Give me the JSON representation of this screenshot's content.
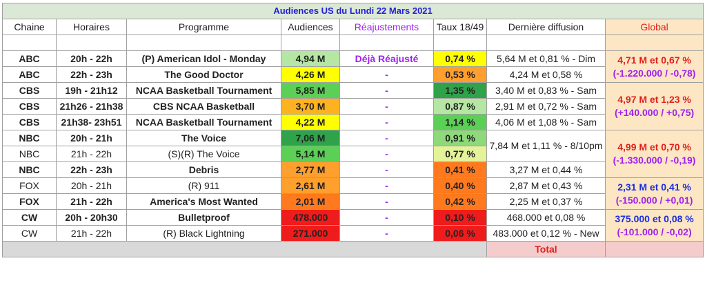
{
  "title": "Audiences US du Lundi 22 Mars 2021",
  "headers": {
    "chaine": "Chaine",
    "horaires": "Horaires",
    "programme": "Programme",
    "audiences": "Audiences",
    "reajustements": "Réajustements",
    "taux": "Taux 18/49",
    "derniere": "Dernière diffusion",
    "global": "Global"
  },
  "rows": [
    {
      "chaine": "ABC",
      "horaires": "20h - 22h",
      "programme": "(P) American Idol - Monday",
      "audience": "4,94 M",
      "aud_color": "#b6e6a4",
      "reaj": "Déjà Réajusté",
      "taux": "0,74 %",
      "taux_color": "#ffff00",
      "derniere": "5,64 M et 0,81 % - Dim"
    },
    {
      "chaine": "ABC",
      "horaires": "22h - 23h",
      "programme": "The Good Doctor",
      "audience": "4,26 M",
      "aud_color": "#ffff00",
      "reaj": "-",
      "taux": "0,53 %",
      "taux_color": "#ff9f2d",
      "derniere": "4,24 M et 0,58 %"
    },
    {
      "chaine": "CBS",
      "horaires": "19h - 21h12",
      "programme": "NCAA Basketball Tournament",
      "audience": "5,85 M",
      "aud_color": "#5ccf56",
      "reaj": "-",
      "taux": "1,35 %",
      "taux_color": "#2fa24a",
      "derniere": "3,40 M et 0,83 % - Sam"
    },
    {
      "chaine": "CBS",
      "horaires": "21h26 - 21h38",
      "programme": "CBS NCAA Basketball",
      "audience": "3,70 M",
      "aud_color": "#ffb21f",
      "reaj": "-",
      "taux": "0,87 %",
      "taux_color": "#b6e6a4",
      "derniere": "2,91 M et 0,72 % - Sam"
    },
    {
      "chaine": "CBS",
      "horaires": "21h38- 23h51",
      "programme": "NCAA Basketball Tournament",
      "audience": "4,22 M",
      "aud_color": "#ffff00",
      "reaj": "-",
      "taux": "1,14 %",
      "taux_color": "#5ccf56",
      "derniere": "4,06 M et 1,08 % - Sam"
    },
    {
      "chaine": "NBC",
      "horaires": "20h - 21h",
      "programme": "The Voice",
      "audience": "7,06 M",
      "aud_color": "#2fa24a",
      "reaj": "-",
      "taux": "0,91 %",
      "taux_color": "#8ed97a",
      "derniere": "7,84 M et 1,11 % - 8/10pm"
    },
    {
      "chaine": "NBC",
      "horaires": "21h - 22h",
      "programme": "(S)(R) The Voice",
      "audience": "5,14 M",
      "aud_color": "#5ccf56",
      "reaj": "-",
      "taux": "0,77 %",
      "taux_color": "#e4f29a",
      "derniere": ""
    },
    {
      "chaine": "NBC",
      "horaires": "22h - 23h",
      "programme": "Debris",
      "audience": "2,77 M",
      "aud_color": "#ff9f2d",
      "reaj": "-",
      "taux": "0,41 %",
      "taux_color": "#ff7a1f",
      "derniere": "3,27 M et 0,44 %"
    },
    {
      "chaine": "FOX",
      "horaires": "20h - 21h",
      "programme": "(R) 911",
      "audience": "2,61 M",
      "aud_color": "#ff9f2d",
      "reaj": "-",
      "taux": "0,40 %",
      "taux_color": "#ff7a1f",
      "derniere": "2,87 M et 0,43 %"
    },
    {
      "chaine": "FOX",
      "horaires": "21h - 22h",
      "programme": "America's Most Wanted",
      "audience": "2,01 M",
      "aud_color": "#ff7a1f",
      "reaj": "-",
      "taux": "0,42 %",
      "taux_color": "#ff7a1f",
      "derniere": "2,25 M et 0,37 %"
    },
    {
      "chaine": "CW",
      "horaires": "20h - 20h30",
      "programme": "Bulletproof",
      "audience": "478.000",
      "aud_color": "#ee1c1c",
      "reaj": "-",
      "taux": "0,10 %",
      "taux_color": "#ee1c1c",
      "derniere": "468.000 et 0,08 %"
    },
    {
      "chaine": "CW",
      "horaires": "21h - 22h",
      "programme": "(R) Black Lightning",
      "audience": "271.000",
      "aud_color": "#ee1c1c",
      "reaj": "-",
      "taux": "0,06 %",
      "taux_color": "#ee1c1c",
      "derniere": "483.000 et 0,12 % - New"
    }
  ],
  "globals": {
    "abc": {
      "line1": "4,71 M et 0,67 %",
      "line2": "(-1.220.000 / -0,78)"
    },
    "cbs": {
      "line1": "4,97 M et 1,23 %",
      "line2": "(+140.000 / +0,75)"
    },
    "nbc": {
      "line1": "4,99 M et 0,70 %",
      "line2": "(-1.330.000 / -0,19)"
    },
    "fox": {
      "line1": "2,31 M et 0,41 %",
      "line2": "(-150.000 / +0,01)"
    },
    "cw": {
      "line1": "375.000 et 0,08 %",
      "line2": "(-101.000 / -0,02)"
    }
  },
  "footer": {
    "total": "Total"
  }
}
